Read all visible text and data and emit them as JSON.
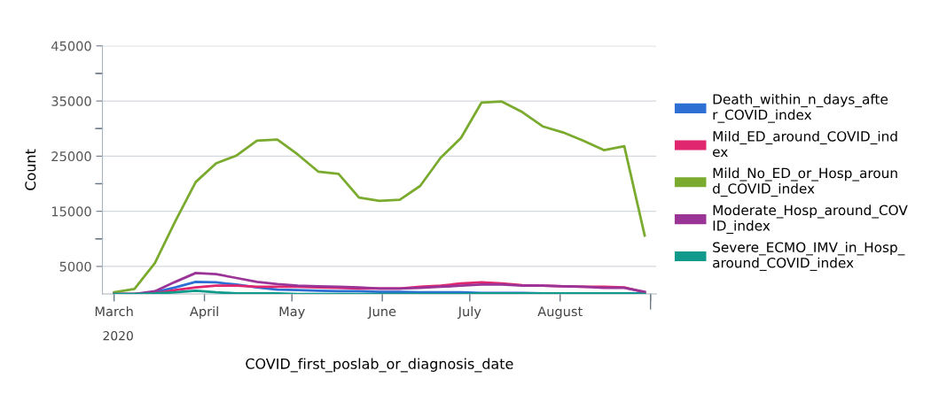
{
  "chart_data": {
    "type": "line",
    "xlabel": "COVID_first_poslab_or_diagnosis_date",
    "ylabel": "Count",
    "x": [
      "2020-03-01",
      "2020-03-08",
      "2020-03-15",
      "2020-03-22",
      "2020-03-29",
      "2020-04-05",
      "2020-04-12",
      "2020-04-19",
      "2020-04-26",
      "2020-05-03",
      "2020-05-10",
      "2020-05-17",
      "2020-05-24",
      "2020-05-31",
      "2020-06-07",
      "2020-06-14",
      "2020-06-21",
      "2020-06-28",
      "2020-07-05",
      "2020-07-12",
      "2020-07-19",
      "2020-07-26",
      "2020-08-02",
      "2020-08-09",
      "2020-08-16",
      "2020-08-23",
      "2020-08-30"
    ],
    "series": [
      {
        "name": "Death_within_n_days_after_COVID_index",
        "color": "#2e6fd4",
        "values": [
          0,
          0,
          300,
          1200,
          2200,
          2100,
          1700,
          1200,
          800,
          700,
          600,
          500,
          500,
          400,
          400,
          300,
          300,
          300,
          200,
          200,
          200,
          100,
          100,
          100,
          100,
          100,
          100
        ]
      },
      {
        "name": "Mild_ED_around_COVID_index",
        "color": "#e0266e",
        "values": [
          0,
          0,
          100,
          700,
          1200,
          1500,
          1500,
          1300,
          1300,
          1300,
          1200,
          1100,
          1000,
          1000,
          1000,
          1300,
          1500,
          1900,
          2100,
          1900,
          1600,
          1500,
          1400,
          1300,
          1300,
          1200,
          300
        ]
      },
      {
        "name": "Mild_No_ED_or_Hosp_around_COVID_index",
        "color": "#7aaa2e",
        "values": [
          300,
          900,
          5600,
          13200,
          20300,
          23700,
          25100,
          27800,
          28000,
          25300,
          22200,
          21800,
          17500,
          16900,
          17100,
          19600,
          24700,
          28300,
          34700,
          34900,
          33000,
          30400,
          29300,
          27800,
          26100,
          26800,
          10600
        ]
      },
      {
        "name": "Moderate_Hosp_around_COVID_index",
        "color": "#9b3497",
        "values": [
          0,
          0,
          500,
          2200,
          3800,
          3600,
          2900,
          2200,
          1800,
          1500,
          1400,
          1300,
          1200,
          1000,
          1000,
          1100,
          1300,
          1500,
          1700,
          1700,
          1500,
          1500,
          1400,
          1300,
          1100,
          1100,
          400
        ]
      },
      {
        "name": "Severe_ECMO_IMV_in_Hosp_around_COVID_index",
        "color": "#0f9a8c",
        "values": [
          0,
          0,
          100,
          300,
          600,
          300,
          100,
          100,
          100,
          0,
          0,
          0,
          0,
          0,
          0,
          0,
          0,
          0,
          100,
          100,
          100,
          100,
          100,
          100,
          100,
          100,
          0
        ]
      }
    ],
    "xlim": [
      "2020-02-26",
      "2020-09-03"
    ],
    "xticks": [
      {
        "value": "2020-03-01",
        "label": "March"
      },
      {
        "value": "2020-04-01",
        "label": "April"
      },
      {
        "value": "2020-05-01",
        "label": "May"
      },
      {
        "value": "2020-06-01",
        "label": "June"
      },
      {
        "value": "2020-07-01",
        "label": "July"
      },
      {
        "value": "2020-08-01",
        "label": "August"
      },
      {
        "value": "2020-09-01",
        "label": null
      }
    ],
    "ylim": [
      0,
      45000
    ],
    "yticks": [
      5000,
      {
        "value": 10000,
        "label": null
      },
      15000,
      {
        "value": 20000,
        "label": null
      },
      25000,
      {
        "value": 30000,
        "label": null
      },
      35000,
      {
        "value": 40000,
        "label": null
      },
      45000
    ],
    "annotations": [
      "2020"
    ],
    "grid": "y",
    "legend": "right",
    "marker": "none",
    "line_style": "solid"
  }
}
